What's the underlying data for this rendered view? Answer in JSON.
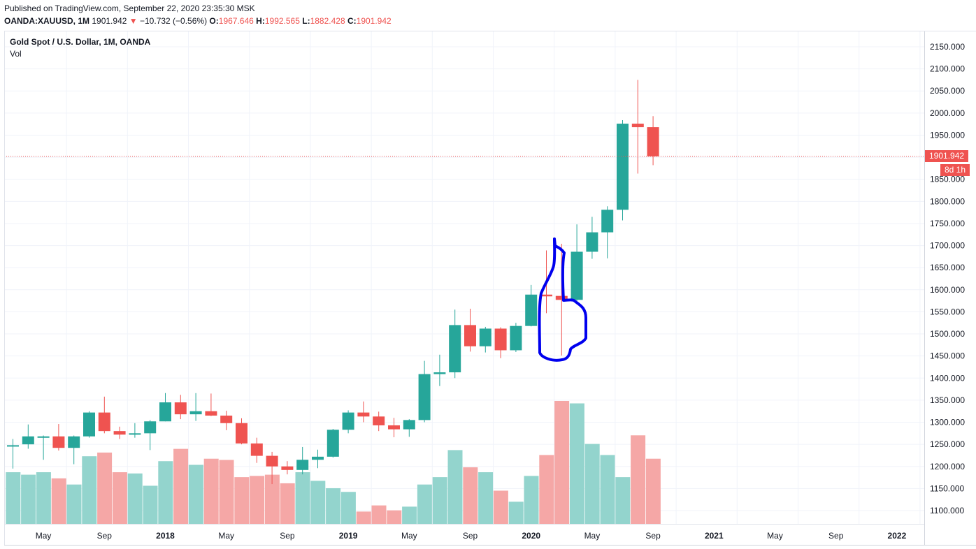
{
  "header": {
    "published": "Published on TradingView.com, September 22, 2020 23:35:30 MSK",
    "symbol": "OANDA:XAUUSD, 1M",
    "last": "1901.942",
    "arrow": "▼",
    "change": "−10.732 (−0.56%)",
    "o_label": "O:",
    "o": "1967.646",
    "h_label": "H:",
    "h": "1992.565",
    "l_label": "L:",
    "l": "1882.428",
    "c_label": "C:",
    "c": "1901.942"
  },
  "legend": {
    "title": "Gold Spot / U.S. Dollar, 1M, OANDA",
    "indicator": "Vol"
  },
  "price_tag": {
    "value": "1901.942",
    "countdown": "8d 1h"
  },
  "colors": {
    "up": "#26a69a",
    "down": "#ef5350",
    "vol_up": "#93d4cd",
    "vol_down": "#f5a7a6",
    "grid": "#f0f3fa",
    "annotation": "#0000ee"
  },
  "chart_data": {
    "type": "candlestick",
    "title": "Gold Spot / U.S. Dollar, 1M, OANDA",
    "y_ticks": [
      1100,
      1150,
      1200,
      1250,
      1300,
      1350,
      1400,
      1450,
      1500,
      1550,
      1600,
      1650,
      1700,
      1750,
      1800,
      1850,
      1900,
      1950,
      2000,
      2050,
      2100,
      2150
    ],
    "y_tick_labels": [
      "1100.000",
      "1150.000",
      "1200.000",
      "1250.000",
      "1300.000",
      "1350.000",
      "1400.000",
      "1450.000",
      "1500.000",
      "1550.000",
      "1600.000",
      "1650.000",
      "1700.000",
      "1750.000",
      "1800.000",
      "1850.000",
      "1900.000",
      "1950.000",
      "2000.000",
      "2050.000",
      "2100.000",
      "2150.000"
    ],
    "ylim": [
      1070,
      2185
    ],
    "x_ticks": [
      {
        "label": "May",
        "bold": false,
        "month": "2017-05"
      },
      {
        "label": "Sep",
        "bold": false,
        "month": "2017-09"
      },
      {
        "label": "2018",
        "bold": true,
        "month": "2018-01"
      },
      {
        "label": "May",
        "bold": false,
        "month": "2018-05"
      },
      {
        "label": "Sep",
        "bold": false,
        "month": "2018-09"
      },
      {
        "label": "2019",
        "bold": true,
        "month": "2019-01"
      },
      {
        "label": "May",
        "bold": false,
        "month": "2019-05"
      },
      {
        "label": "Sep",
        "bold": false,
        "month": "2019-09"
      },
      {
        "label": "2020",
        "bold": true,
        "month": "2020-01"
      },
      {
        "label": "May",
        "bold": false,
        "month": "2020-05"
      },
      {
        "label": "Sep",
        "bold": false,
        "month": "2020-09"
      },
      {
        "label": "2021",
        "bold": true,
        "month": "2021-01"
      },
      {
        "label": "May",
        "bold": false,
        "month": "2021-05"
      },
      {
        "label": "Sep",
        "bold": false,
        "month": "2021-09"
      },
      {
        "label": "2022",
        "bold": true,
        "month": "2022-01"
      }
    ],
    "candles": [
      {
        "month": "2017-03",
        "o": 1248,
        "h": 1262,
        "l": 1195,
        "c": 1248,
        "v": 0.42
      },
      {
        "month": "2017-04",
        "o": 1250,
        "h": 1295,
        "l": 1240,
        "c": 1268,
        "v": 0.4
      },
      {
        "month": "2017-05",
        "o": 1268,
        "h": 1270,
        "l": 1215,
        "c": 1268,
        "v": 0.42
      },
      {
        "month": "2017-06",
        "o": 1268,
        "h": 1296,
        "l": 1236,
        "c": 1242,
        "v": 0.37
      },
      {
        "month": "2017-07",
        "o": 1242,
        "h": 1270,
        "l": 1205,
        "c": 1268,
        "v": 0.32
      },
      {
        "month": "2017-08",
        "o": 1268,
        "h": 1325,
        "l": 1265,
        "c": 1322,
        "v": 0.55
      },
      {
        "month": "2017-09",
        "o": 1322,
        "h": 1358,
        "l": 1275,
        "c": 1280,
        "v": 0.58
      },
      {
        "month": "2017-10",
        "o": 1280,
        "h": 1290,
        "l": 1262,
        "c": 1272,
        "v": 0.42
      },
      {
        "month": "2017-11",
        "o": 1272,
        "h": 1298,
        "l": 1265,
        "c": 1275,
        "v": 0.41
      },
      {
        "month": "2017-12",
        "o": 1275,
        "h": 1305,
        "l": 1237,
        "c": 1302,
        "v": 0.31
      },
      {
        "month": "2018-01",
        "o": 1302,
        "h": 1366,
        "l": 1302,
        "c": 1345,
        "v": 0.51
      },
      {
        "month": "2018-02",
        "o": 1345,
        "h": 1362,
        "l": 1307,
        "c": 1318,
        "v": 0.61
      },
      {
        "month": "2018-03",
        "o": 1318,
        "h": 1366,
        "l": 1303,
        "c": 1325,
        "v": 0.48
      },
      {
        "month": "2018-04",
        "o": 1325,
        "h": 1365,
        "l": 1314,
        "c": 1315,
        "v": 0.53
      },
      {
        "month": "2018-05",
        "o": 1315,
        "h": 1326,
        "l": 1282,
        "c": 1298,
        "v": 0.52
      },
      {
        "month": "2018-06",
        "o": 1298,
        "h": 1309,
        "l": 1250,
        "c": 1252,
        "v": 0.38
      },
      {
        "month": "2018-07",
        "o": 1252,
        "h": 1265,
        "l": 1208,
        "c": 1224,
        "v": 0.39
      },
      {
        "month": "2018-08",
        "o": 1224,
        "h": 1233,
        "l": 1160,
        "c": 1200,
        "v": 0.4
      },
      {
        "month": "2018-09",
        "o": 1200,
        "h": 1212,
        "l": 1182,
        "c": 1192,
        "v": 0.33
      },
      {
        "month": "2018-10",
        "o": 1192,
        "h": 1244,
        "l": 1182,
        "c": 1215,
        "v": 0.42
      },
      {
        "month": "2018-11",
        "o": 1215,
        "h": 1238,
        "l": 1196,
        "c": 1222,
        "v": 0.35
      },
      {
        "month": "2018-12",
        "o": 1222,
        "h": 1285,
        "l": 1220,
        "c": 1283,
        "v": 0.29
      },
      {
        "month": "2019-01",
        "o": 1283,
        "h": 1327,
        "l": 1275,
        "c": 1322,
        "v": 0.26
      },
      {
        "month": "2019-02",
        "o": 1322,
        "h": 1347,
        "l": 1300,
        "c": 1313,
        "v": 0.1
      },
      {
        "month": "2019-03",
        "o": 1313,
        "h": 1324,
        "l": 1280,
        "c": 1293,
        "v": 0.15
      },
      {
        "month": "2019-04",
        "o": 1293,
        "h": 1310,
        "l": 1266,
        "c": 1284,
        "v": 0.11
      },
      {
        "month": "2019-05",
        "o": 1284,
        "h": 1307,
        "l": 1267,
        "c": 1305,
        "v": 0.14
      },
      {
        "month": "2019-06",
        "o": 1305,
        "h": 1439,
        "l": 1300,
        "c": 1409,
        "v": 0.32
      },
      {
        "month": "2019-07",
        "o": 1409,
        "h": 1453,
        "l": 1382,
        "c": 1413,
        "v": 0.38
      },
      {
        "month": "2019-08",
        "o": 1413,
        "h": 1555,
        "l": 1400,
        "c": 1520,
        "v": 0.6
      },
      {
        "month": "2019-09",
        "o": 1520,
        "h": 1557,
        "l": 1460,
        "c": 1472,
        "v": 0.46
      },
      {
        "month": "2019-10",
        "o": 1472,
        "h": 1516,
        "l": 1458,
        "c": 1512,
        "v": 0.42
      },
      {
        "month": "2019-11",
        "o": 1512,
        "h": 1515,
        "l": 1445,
        "c": 1463,
        "v": 0.27
      },
      {
        "month": "2019-12",
        "o": 1463,
        "h": 1525,
        "l": 1459,
        "c": 1518,
        "v": 0.18
      },
      {
        "month": "2020-01",
        "o": 1518,
        "h": 1611,
        "l": 1517,
        "c": 1589,
        "v": 0.39
      },
      {
        "month": "2020-02",
        "o": 1589,
        "h": 1689,
        "l": 1547,
        "c": 1585,
        "v": 0.56
      },
      {
        "month": "2020-03",
        "o": 1586,
        "h": 1704,
        "l": 1451,
        "c": 1577,
        "v": 1.0
      },
      {
        "month": "2020-04",
        "o": 1577,
        "h": 1748,
        "l": 1568,
        "c": 1686,
        "v": 0.98
      },
      {
        "month": "2020-05",
        "o": 1686,
        "h": 1765,
        "l": 1670,
        "c": 1730,
        "v": 0.65
      },
      {
        "month": "2020-06",
        "o": 1730,
        "h": 1789,
        "l": 1671,
        "c": 1781,
        "v": 0.56
      },
      {
        "month": "2020-07",
        "o": 1781,
        "h": 1984,
        "l": 1757,
        "c": 1976,
        "v": 0.38
      },
      {
        "month": "2020-08",
        "o": 1976,
        "h": 2075,
        "l": 1863,
        "c": 1968,
        "v": 0.72
      },
      {
        "month": "2020-09",
        "o": 1968,
        "h": 1993,
        "l": 1882,
        "c": 1902,
        "v": 0.53
      }
    ],
    "last_price": 1901.942
  }
}
